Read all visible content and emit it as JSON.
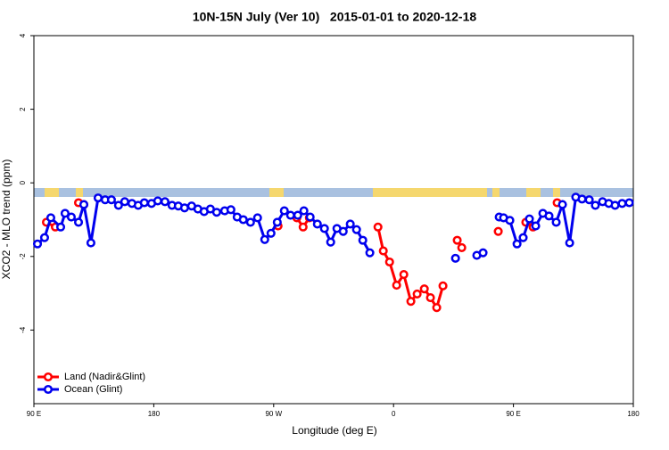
{
  "chart_data": {
    "type": "line",
    "title": "10N-15N July (Ver 10)   2015-01-01 to 2020-12-18",
    "x_label": "Longitude (deg E)",
    "y_label": "XCO2 - MLO trend (ppm)",
    "xlim": [
      90,
      540
    ],
    "xticks": [
      {
        "value": 90,
        "label": "90 E"
      },
      {
        "value": 180,
        "label": "180"
      },
      {
        "value": 270,
        "label": "90 W"
      },
      {
        "value": 360,
        "label": "0"
      },
      {
        "value": 450,
        "label": "90 E"
      },
      {
        "value": 540,
        "label": "180"
      }
    ],
    "ylim": [
      -6,
      4
    ],
    "yticks": [
      4,
      2,
      0,
      -2,
      -4
    ],
    "legend": "bottom-left",
    "series": [
      {
        "name": "Land (Nadir&Glint)",
        "color": "#ff0000",
        "x": [
          99.4,
          106.1,
          null,
          123.5,
          127.5,
          null,
          273.3,
          null,
          287.4,
          292.1,
          296.8,
          null,
          348.3,
          352.3,
          357.0,
          362.3,
          367.7,
          373.0,
          377.7,
          383.1,
          387.7,
          392.4,
          397.1,
          null,
          407.8,
          411.2,
          null,
          438.6,
          null,
          459.3,
          464.7,
          null,
          482.8
        ],
        "values": [
          -1.07,
          -1.2,
          null,
          -0.54,
          -0.59,
          null,
          -1.17,
          null,
          -0.95,
          -1.2,
          -0.95,
          null,
          -1.2,
          -1.85,
          -2.15,
          -2.78,
          -2.49,
          -3.22,
          -3.02,
          -2.88,
          -3.12,
          -3.39,
          -2.8,
          null,
          -1.56,
          -1.76,
          null,
          -1.32,
          null,
          -1.07,
          -1.2,
          null,
          -0.54
        ]
      },
      {
        "name": "Ocean (Glint)",
        "color": "#0000ee",
        "x": [
          92.7,
          98.0,
          102.7,
          110.1,
          113.4,
          118.1,
          123.5,
          127.5,
          132.8,
          138.2,
          143.5,
          148.2,
          153.5,
          158.2,
          163.6,
          168.3,
          172.9,
          178.3,
          183.0,
          188.4,
          193.7,
          198.4,
          203.1,
          208.4,
          213.1,
          217.8,
          222.5,
          227.2,
          233.2,
          237.9,
          242.6,
          247.2,
          252.6,
          257.9,
          263.3,
          268.0,
          272.7,
          278.0,
          282.7,
          288.1,
          292.7,
          297.4,
          302.8,
          308.1,
          312.8,
          317.5,
          322.2,
          327.5,
          332.2,
          336.9,
          342.2,
          null,
          406.5,
          null,
          422.5,
          427.2,
          null,
          439.3,
          442.6,
          447.3,
          452.7,
          457.3,
          462.0,
          466.7,
          472.1,
          476.7,
          482.1,
          486.8,
          492.2,
          496.8,
          501.5,
          506.9,
          511.5,
          516.9,
          521.6,
          526.3,
          531.6,
          537.0
        ],
        "values": [
          -1.66,
          -1.49,
          -0.95,
          -1.2,
          -0.83,
          -0.93,
          -1.07,
          -0.59,
          -1.63,
          -0.41,
          -0.46,
          -0.46,
          -0.61,
          -0.51,
          -0.56,
          -0.61,
          -0.54,
          -0.56,
          -0.49,
          -0.51,
          -0.61,
          -0.63,
          -0.68,
          -0.63,
          -0.71,
          -0.78,
          -0.71,
          -0.8,
          -0.76,
          -0.73,
          -0.93,
          -1.0,
          -1.07,
          -0.95,
          -1.54,
          -1.37,
          -1.07,
          -0.76,
          -0.88,
          -0.88,
          -0.76,
          -0.93,
          -1.12,
          -1.24,
          -1.61,
          -1.24,
          -1.32,
          -1.12,
          -1.27,
          -1.56,
          -1.9,
          null,
          -2.05,
          null,
          -1.97,
          -1.9,
          null,
          -0.93,
          -0.95,
          -1.02,
          -1.66,
          -1.49,
          -0.98,
          -1.17,
          -0.83,
          -0.9,
          -1.07,
          -0.59,
          -1.63,
          -0.39,
          -0.44,
          -0.46,
          -0.61,
          -0.51,
          -0.56,
          -0.61,
          -0.56,
          -0.54
        ]
      }
    ]
  }
}
